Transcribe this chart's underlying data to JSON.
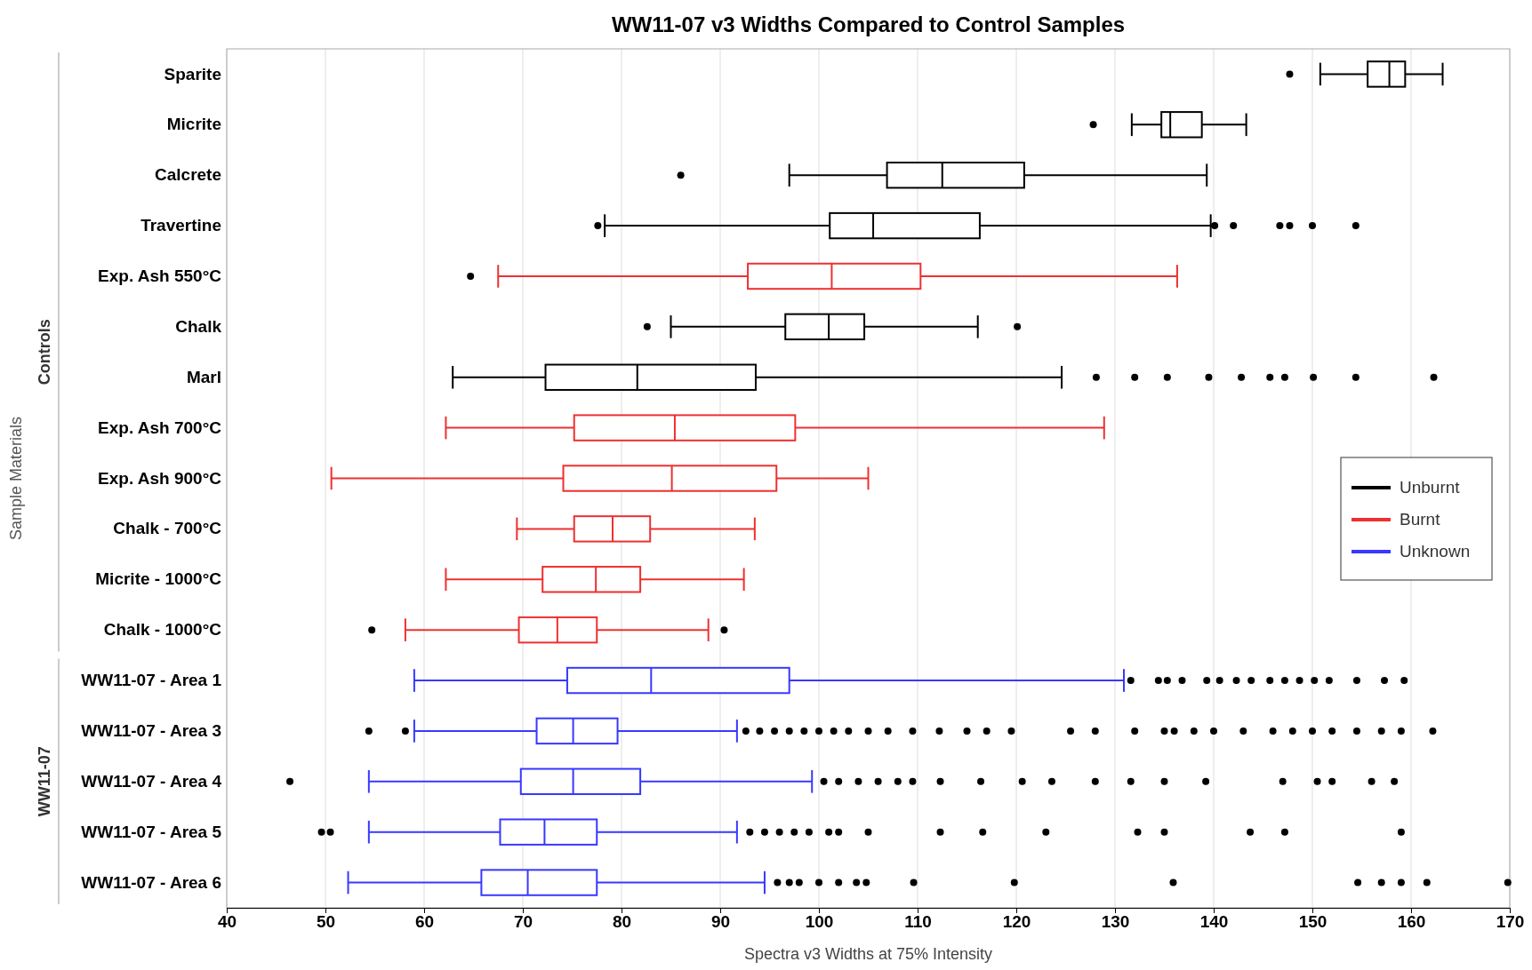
{
  "chart_data": {
    "type": "box",
    "orientation": "horizontal",
    "title": "WW11-07 v3 Widths Compared to Control Samples",
    "xlabel": "Spectra v3 Widths at 75% Intensity",
    "ylabel": "Sample Materials",
    "categories": [
      "Sparite",
      "Micrite",
      "Calcrete",
      "Travertine",
      "Exp. Ash 550°C",
      "Chalk",
      "Marl",
      "Exp. Ash 700°C",
      "Exp. Ash 900°C",
      "Chalk - 700°C",
      "Micrite - 1000°C",
      "Chalk - 1000°C",
      "WW11-07 - Area 1",
      "WW11-07 - Area 3",
      "WW11-07 - Area 4",
      "WW11-07 - Area 5",
      "WW11-07 - Area 6"
    ],
    "xlim": [
      40,
      170
    ],
    "xticks": [
      40,
      50,
      60,
      70,
      80,
      90,
      100,
      110,
      120,
      130,
      140,
      150,
      160,
      170
    ],
    "grid": "x",
    "legend": "right",
    "annotations": [
      "Controls",
      "WW11-07"
    ],
    "series": [
      {
        "name": "Unburnt",
        "color": "#000000",
        "boxes": [
          {
            "low": 150.8,
            "q1": 155.6,
            "median": 157.8,
            "q3": 159.4,
            "high": 163.2,
            "outliers": [
              147.7
            ]
          },
          {
            "low": 131.7,
            "q1": 134.7,
            "median": 135.6,
            "q3": 138.8,
            "high": 143.3,
            "outliers": [
              127.8
            ]
          },
          {
            "low": 97,
            "q1": 106.9,
            "median": 112.5,
            "q3": 120.8,
            "high": 139.3,
            "outliers": [
              86
            ]
          },
          {
            "low": 78.3,
            "q1": 101.1,
            "median": 105.5,
            "q3": 116.3,
            "high": 139.7,
            "outliers": [
              77.6,
              140.1,
              142,
              146.7,
              147.7,
              150,
              154.4
            ]
          },
          null,
          {
            "low": 85,
            "q1": 96.6,
            "median": 101,
            "q3": 104.6,
            "high": 116.1,
            "outliers": [
              82.6,
              120.1
            ]
          },
          {
            "low": 62.9,
            "q1": 72.3,
            "median": 81.6,
            "q3": 93.6,
            "high": 124.6,
            "outliers": [
              128.1,
              132,
              135.3,
              139.5,
              142.8,
              145.7,
              147.2,
              150.1,
              154.4,
              162.3
            ]
          },
          null,
          null,
          null,
          null,
          null,
          null,
          null,
          null,
          null,
          null
        ]
      },
      {
        "name": "Burnt",
        "color": "#ee3030",
        "boxes": [
          null,
          null,
          null,
          null,
          {
            "low": 67.5,
            "q1": 92.8,
            "median": 101.3,
            "q3": 110.3,
            "high": 136.3,
            "outliers": [
              64.7
            ]
          },
          null,
          null,
          {
            "low": 62.2,
            "q1": 75.2,
            "median": 85.4,
            "q3": 97.6,
            "high": 128.9
          },
          {
            "low": 50.6,
            "q1": 74.1,
            "median": 85.1,
            "q3": 95.7,
            "high": 105
          },
          {
            "low": 69.4,
            "q1": 75.2,
            "median": 79.1,
            "q3": 82.9,
            "high": 93.5
          },
          {
            "low": 62.2,
            "q1": 72,
            "median": 77.4,
            "q3": 81.9,
            "high": 92.4
          },
          {
            "low": 58.1,
            "q1": 69.6,
            "median": 73.5,
            "q3": 77.5,
            "high": 88.8,
            "outliers": [
              54.7,
              90.4
            ]
          },
          null,
          null,
          null,
          null,
          null
        ]
      },
      {
        "name": "Unknown",
        "color": "#3838ff",
        "boxes": [
          null,
          null,
          null,
          null,
          null,
          null,
          null,
          null,
          null,
          null,
          null,
          null,
          {
            "low": 59,
            "q1": 74.5,
            "median": 83,
            "q3": 97,
            "high": 130.9,
            "outliers": [
              131.6,
              134.4,
              135.3,
              136.8,
              139.3,
              140.6,
              142.3,
              143.8,
              145.7,
              147.2,
              148.7,
              150.2,
              151.7,
              154.5,
              157.3,
              159.3
            ]
          },
          {
            "low": 59,
            "q1": 71.4,
            "median": 75.1,
            "q3": 79.6,
            "high": 91.7,
            "outliers": [
              54.4,
              58.1,
              92.6,
              94,
              95.5,
              97,
              98.5,
              100,
              101.5,
              103,
              105,
              107,
              109.5,
              112.2,
              115,
              117,
              119.5,
              125.5,
              128,
              132,
              135,
              136,
              138,
              140,
              143,
              146,
              148,
              150,
              152,
              154.5,
              157,
              159,
              162.2
            ]
          },
          {
            "low": 54.4,
            "q1": 69.8,
            "median": 75.1,
            "q3": 81.9,
            "high": 99.3,
            "outliers": [
              46.4,
              100.5,
              102,
              104,
              106,
              108,
              109.5,
              112.3,
              116.4,
              120.6,
              123.6,
              128,
              131.6,
              135,
              139.2,
              147,
              150.5,
              152,
              156,
              158.3
            ]
          },
          {
            "low": 54.4,
            "q1": 67.7,
            "median": 72.2,
            "q3": 77.5,
            "high": 91.7,
            "outliers": [
              49.6,
              50.5,
              93,
              94.5,
              96,
              97.5,
              99,
              101,
              102,
              105,
              112.3,
              116.6,
              123,
              132.3,
              135,
              143.7,
              147.2,
              159
            ]
          },
          {
            "low": 52.3,
            "q1": 65.8,
            "median": 70.5,
            "q3": 77.5,
            "high": 94.5,
            "outliers": [
              95.8,
              97,
              98,
              100,
              102,
              103.8,
              104.8,
              109.6,
              119.8,
              135.9,
              154.6,
              157,
              159,
              161.6,
              169.8
            ]
          }
        ]
      }
    ]
  }
}
